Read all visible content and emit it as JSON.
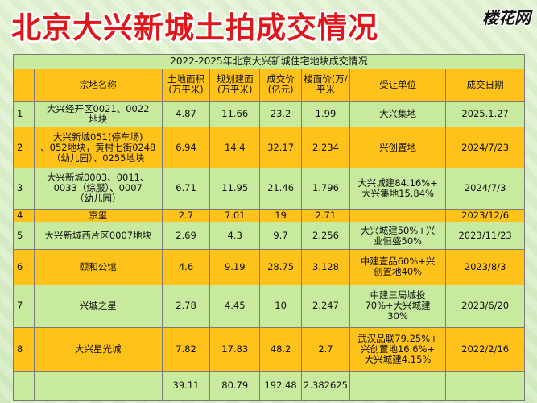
{
  "title": "北京大兴新城土拍成交情况",
  "logo": "楼花网",
  "table": {
    "caption": "2022-2025年北京大兴新城住宅地块成交情况",
    "headers": [
      "",
      "宗地名称",
      "土地面积\n(万平米)",
      "规划建面\n(万平米)",
      "成交价\n(亿元)",
      "楼面价(万/\n平米",
      "受让单位",
      "成交日期"
    ],
    "rows": [
      [
        "1",
        "大兴经开区0021、0022\n地块",
        "4.87",
        "11.66",
        "23.2",
        "1.99",
        "大兴集地",
        "2025.1.27"
      ],
      [
        "2",
        "大兴新城051(停车场)\n、052地块，黄村七街0248\n（幼儿园）、0255地块",
        "6.94",
        "14.4",
        "32.17",
        "2.234",
        "兴创置地",
        "2024/7/23"
      ],
      [
        "3",
        "大兴新城0003、0011、\n0033（综服）、0007\n（幼儿园）",
        "6.71",
        "11.95",
        "21.46",
        "1.796",
        "大兴城建84.16%+\n大兴集地15.84%",
        "2024/7/3"
      ],
      [
        "4",
        "京玺",
        "2.7",
        "7.01",
        "19",
        "2.71",
        "",
        "2023/12/6"
      ],
      [
        "5",
        "大兴新城西片区0007地块",
        "2.69",
        "4.3",
        "9.7",
        "2.256",
        "大兴城建50%+兴\n业恒盛50%",
        "2023/11/23"
      ],
      [
        "6",
        "颐和公馆",
        "4.6",
        "9.19",
        "28.75",
        "3.128",
        "中建壹品60%+兴\n创置地40%",
        "2023/8/3"
      ],
      [
        "7",
        "兴城之星",
        "2.78",
        "4.45",
        "10",
        "2.247",
        "中建三局城投\n70%+大兴城建\n30%",
        "2023/6/20"
      ],
      [
        "8",
        "大兴星光城",
        "7.82",
        "17.83",
        "48.2",
        "2.7",
        "武汉品联79.25%+\n兴创置地16.6%+\n大兴城建4.15%",
        "2022/2/16"
      ]
    ],
    "total": [
      "",
      "",
      "39.11",
      "80.79",
      "192.48",
      "2.382625",
      "",
      ""
    ]
  },
  "colors": {
    "yellow": "#ffc21a",
    "green": "#c7ea9f",
    "title_red": "#e1161b"
  }
}
